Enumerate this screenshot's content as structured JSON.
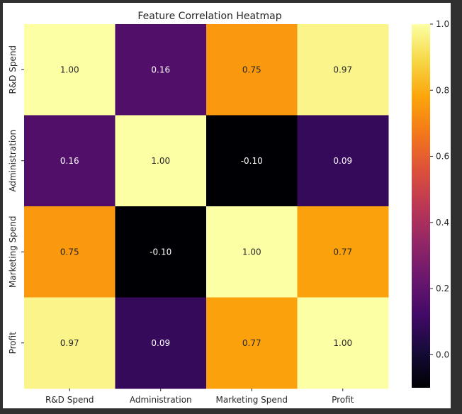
{
  "chart_data": {
    "type": "heatmap",
    "title": "Feature Correlation Heatmap",
    "x_labels": [
      "R&D Spend",
      "Administration",
      "Marketing Spend",
      "Profit"
    ],
    "y_labels": [
      "R&D Spend",
      "Administration",
      "Marketing Spend",
      "Profit"
    ],
    "values": [
      [
        1.0,
        0.16,
        0.75,
        0.97
      ],
      [
        0.16,
        1.0,
        -0.1,
        0.09
      ],
      [
        0.75,
        -0.1,
        1.0,
        0.77
      ],
      [
        0.97,
        0.09,
        0.77,
        1.0
      ]
    ],
    "annotations": [
      [
        "1.00",
        "0.16",
        "0.75",
        "0.97"
      ],
      [
        "0.16",
        "1.00",
        "-0.10",
        "0.09"
      ],
      [
        "0.75",
        "-0.10",
        "1.00",
        "0.77"
      ],
      [
        "0.97",
        "0.09",
        "0.77",
        "1.00"
      ]
    ],
    "colormap": "inferno",
    "vmin": -0.1,
    "vmax": 1.0,
    "colorbar_ticks": [
      0.0,
      0.2,
      0.4,
      0.6,
      0.8,
      1.0
    ],
    "colorbar_tick_labels": [
      "0.0",
      "0.2",
      "0.4",
      "0.6",
      "0.8",
      "1.0"
    ]
  }
}
